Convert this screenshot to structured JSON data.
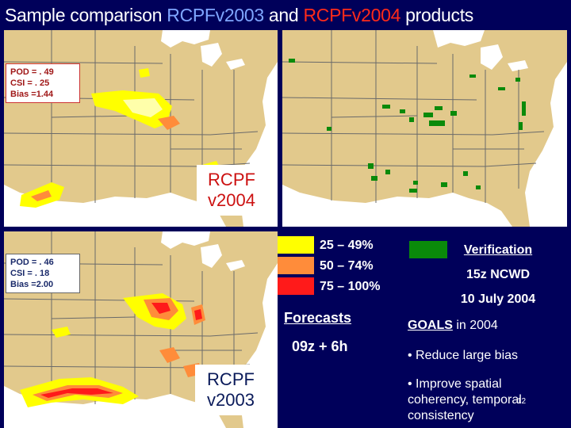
{
  "slide": {
    "title_prefix": "Sample comparison ",
    "title_v2003": "RCPFv2003",
    "title_and": " and ",
    "title_v2004": "RCPFv2004",
    "title_suffix": " products",
    "page_number": "12"
  },
  "stats_v2004": {
    "pod": "POD = . 49",
    "csi": "CSI = . 25",
    "bias": "Bias =1.44"
  },
  "stats_v2003": {
    "pod": "POD = . 46",
    "csi": "CSI = . 18",
    "bias": "Bias =2.00"
  },
  "labels": {
    "v2004_line1": "RCPF",
    "v2004_line2": "v2004",
    "v2003_line1": "RCPF",
    "v2003_line2": "v2003"
  },
  "legend": {
    "items": [
      {
        "label": "25 – 49%",
        "color": "#ffff00"
      },
      {
        "label": "50 – 74%",
        "color": "#ff8c3a"
      },
      {
        "label": "75 – 100%",
        "color": "#ff1a1a"
      }
    ],
    "forecasts_title": "Forecasts",
    "forecasts_time": "09z + 6h"
  },
  "verification": {
    "color": "#0a8a0a",
    "title": "Verification",
    "line2": "15z NCWD",
    "line3": "10 July 2004"
  },
  "goals": {
    "title": "GOALS",
    "title_suffix": " in 2004",
    "items": [
      "Reduce large bias",
      "Improve spatial coherency, temporal consistency"
    ]
  },
  "colors": {
    "background": "#00005a",
    "map_land": "#e2c98c",
    "map_water": "#ffffff",
    "accent_blue": "#7fa6ff",
    "accent_red": "#ff2a1a"
  }
}
